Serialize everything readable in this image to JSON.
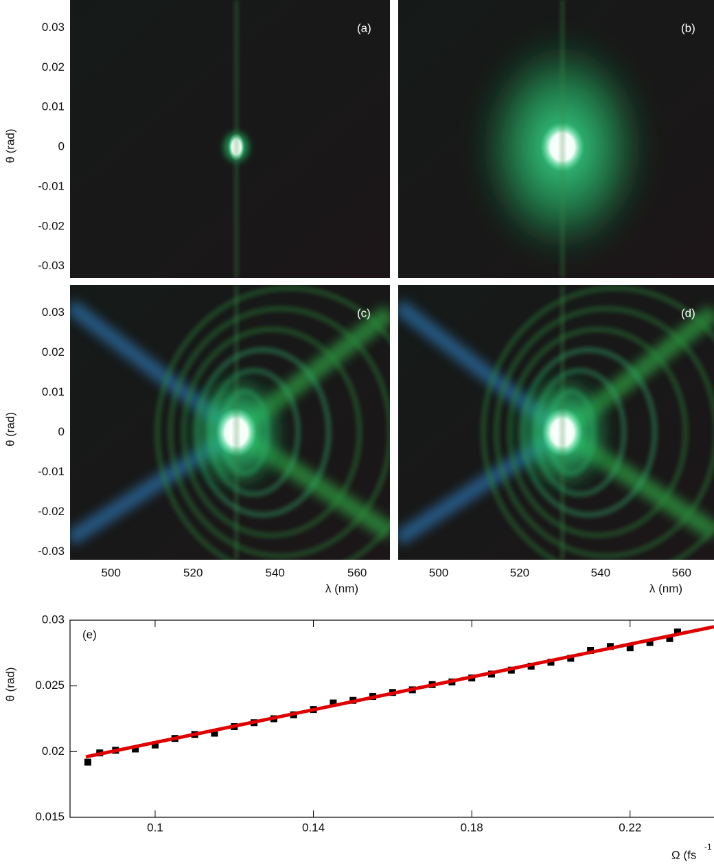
{
  "chart_data": [
    {
      "type": "image",
      "label": "(a)",
      "ylabel": "θ (rad)",
      "ylim": [
        -0.033,
        0.037
      ],
      "yticks": [
        0.03,
        0.02,
        0.01,
        0,
        -0.01,
        -0.02,
        -0.03
      ]
    },
    {
      "type": "image",
      "label": "(b)",
      "ylim": [
        -0.033,
        0.037
      ]
    },
    {
      "type": "image",
      "label": "(c)",
      "ylabel": "θ (rad)",
      "xlabel": "λ (nm)",
      "ylim": [
        -0.032,
        0.037
      ],
      "yticks": [
        0.03,
        0.02,
        0.01,
        0,
        -0.01,
        -0.02,
        -0.03
      ],
      "xlim": [
        490,
        568
      ],
      "xticks": [
        500,
        520,
        540,
        560
      ]
    },
    {
      "type": "image",
      "label": "(d)",
      "xlabel": "λ (nm)",
      "ylim": [
        -0.032,
        0.037
      ],
      "xlim": [
        490,
        568
      ],
      "xticks": [
        500,
        520,
        540,
        560
      ]
    },
    {
      "type": "scatter",
      "label": "(e)",
      "ylabel": "θ (rad)",
      "xlabel": "Ω (fs",
      "xlabel_exponent": "-1",
      "xlim": [
        0.0785,
        0.2412
      ],
      "ylim": [
        0.015,
        0.03
      ],
      "xticks": [
        0.1,
        0.14,
        0.18,
        0.22
      ],
      "yticks": [
        0.015,
        0.02,
        0.025,
        0.03
      ],
      "series": [
        {
          "color": "#000000",
          "x": [
            0.083,
            0.086,
            0.09,
            0.095,
            0.1,
            0.105,
            0.11,
            0.115,
            0.12,
            0.125,
            0.13,
            0.135,
            0.14,
            0.145,
            0.15,
            0.155,
            0.16,
            0.165,
            0.17,
            0.175,
            0.18,
            0.185,
            0.19,
            0.195,
            0.2,
            0.205,
            0.21,
            0.215,
            0.22,
            0.225,
            0.23,
            0.232
          ],
          "values": [
            0.0192,
            0.0199,
            0.0201,
            0.0202,
            0.0205,
            0.021,
            0.0213,
            0.0214,
            0.0219,
            0.0222,
            0.0225,
            0.0228,
            0.0232,
            0.0237,
            0.0239,
            0.0242,
            0.0245,
            0.0247,
            0.0251,
            0.0253,
            0.0256,
            0.0259,
            0.0262,
            0.0265,
            0.0268,
            0.0271,
            0.0277,
            0.028,
            0.0279,
            0.0283,
            0.0286,
            0.0291
          ]
        },
        {
          "color": "#e00000",
          "style": "line",
          "x": [
            0.0825,
            0.2412
          ],
          "values": [
            0.0196,
            0.0295
          ]
        }
      ]
    }
  ]
}
